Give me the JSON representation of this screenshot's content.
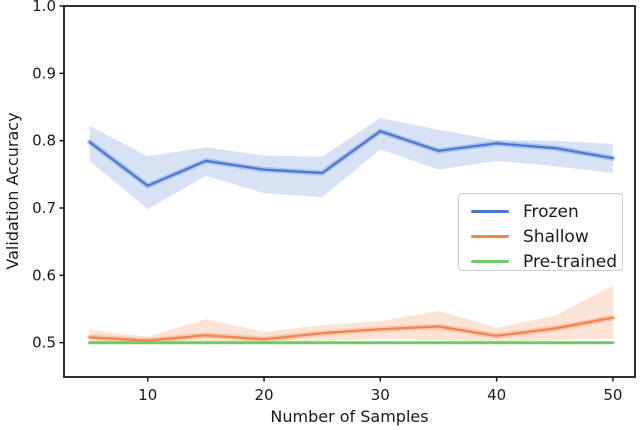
{
  "figure": {
    "background": "#ffffff",
    "spine_color": "#1a1a1a",
    "text_color": "#1a1a1a"
  },
  "chart_data": {
    "type": "line",
    "title": "",
    "xlabel": "Number of Samples",
    "ylabel": "Validation Accuracy",
    "grid": false,
    "legend_position": "center-right",
    "xlim": [
      2.8,
      51.9
    ],
    "ylim": [
      0.449,
      1.0
    ],
    "xticks": [
      10,
      20,
      30,
      40,
      50
    ],
    "xtick_labels": [
      "10",
      "20",
      "30",
      "40",
      "50"
    ],
    "yticks": [
      0.5,
      0.6,
      0.7,
      0.8,
      0.9,
      1.0
    ],
    "ytick_labels": [
      "0.5",
      "0.6",
      "0.7",
      "0.8",
      "0.9",
      "1.0"
    ],
    "x": [
      5,
      10,
      15,
      20,
      25,
      30,
      35,
      40,
      45,
      50
    ],
    "series": [
      {
        "name": "Frozen",
        "color": "#4878d0",
        "line_width": 2.2,
        "band_opacity": 0.21,
        "values": [
          0.798,
          0.733,
          0.77,
          0.757,
          0.752,
          0.814,
          0.785,
          0.796,
          0.789,
          0.774
        ],
        "band_upper": [
          0.822,
          0.777,
          0.79,
          0.778,
          0.776,
          0.834,
          0.816,
          0.801,
          0.8,
          0.795
        ],
        "band_lower": [
          0.77,
          0.698,
          0.748,
          0.722,
          0.716,
          0.787,
          0.757,
          0.77,
          0.762,
          0.752
        ]
      },
      {
        "name": "Shallow",
        "color": "#ee854a",
        "line_width": 2.2,
        "band_opacity": 0.23,
        "values": [
          0.508,
          0.503,
          0.511,
          0.505,
          0.514,
          0.52,
          0.524,
          0.51,
          0.521,
          0.537
        ],
        "band_upper": [
          0.519,
          0.509,
          0.535,
          0.516,
          0.526,
          0.532,
          0.547,
          0.522,
          0.54,
          0.585
        ],
        "band_lower": [
          0.499,
          0.498,
          0.5,
          0.499,
          0.503,
          0.505,
          0.504,
          0.501,
          0.504,
          0.506
        ]
      },
      {
        "name": "Pre-trained",
        "color": "#6acc64",
        "line_width": 3.0,
        "band_opacity": 0,
        "values": [
          0.5,
          0.5,
          0.5,
          0.5,
          0.5,
          0.5,
          0.5,
          0.5,
          0.5,
          0.5
        ],
        "band_upper": null,
        "band_lower": null
      }
    ]
  }
}
